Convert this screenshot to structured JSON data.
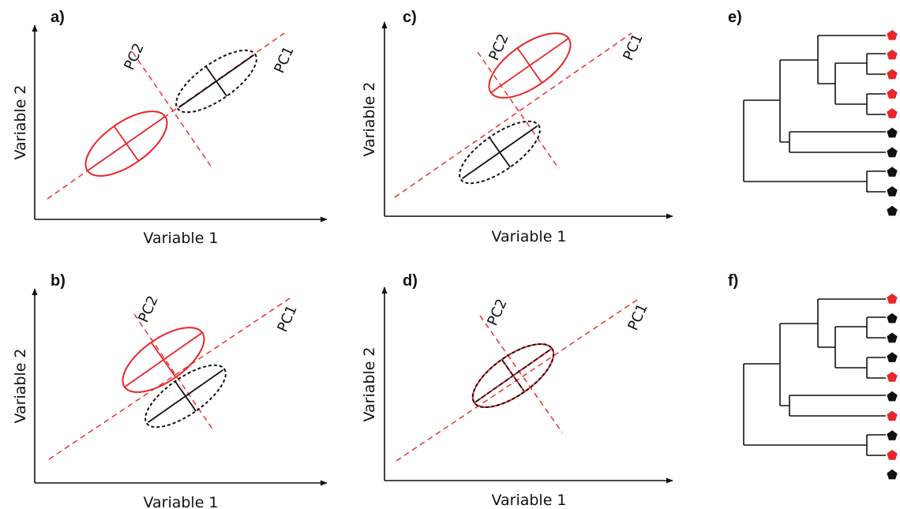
{
  "panels": [
    {
      "label": "a)",
      "xlabel": "Variable 1",
      "ylabel": "Variable 2",
      "pc1": "PC1",
      "pc2": "PC2"
    },
    {
      "label": "b)",
      "xlabel": "Variable 1",
      "ylabel": "Variable 2",
      "pc1": "PC1",
      "pc2": "PC2"
    },
    {
      "label": "c)",
      "xlabel": "Variable 1",
      "ylabel": "Variable 2",
      "pc1": "PC1",
      "pc2": "PC2"
    },
    {
      "label": "d)",
      "xlabel": "Variable 1",
      "ylabel": "Variable 2",
      "pc1": "PC1",
      "pc2": "PC2"
    }
  ],
  "trees": [
    {
      "label": "e)",
      "tips": [
        "red",
        "red",
        "red",
        "red",
        "red",
        "black",
        "black",
        "black",
        "black",
        "black"
      ]
    },
    {
      "label": "f)",
      "tips": [
        "red",
        "black",
        "black",
        "black",
        "red",
        "black",
        "red",
        "black",
        "red",
        "black"
      ]
    }
  ],
  "colors": {
    "red": "#e8262b",
    "black": "#111111",
    "axis": "#111111"
  }
}
